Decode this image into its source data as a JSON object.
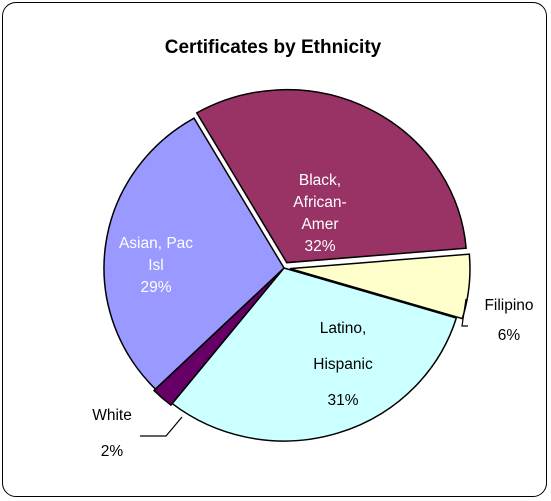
{
  "chart_data": {
    "type": "pie",
    "title": "Certificates by Ethnicity",
    "slices": [
      {
        "label": [
          "Black,",
          "African-",
          "Amer"
        ],
        "pct": "32%",
        "value": 32,
        "color": "#993366",
        "text_color": "#ffffff"
      },
      {
        "label": [
          "Filipino"
        ],
        "pct": "6%",
        "value": 6,
        "color": "#ffffcc",
        "text_color": "#000000"
      },
      {
        "label": [
          "Latino,",
          "Hispanic"
        ],
        "pct": "31%",
        "value": 31,
        "color": "#ccffff",
        "text_color": "#000000"
      },
      {
        "label": [
          "White"
        ],
        "pct": "2%",
        "value": 2,
        "color": "#660066",
        "text_color": "#000000"
      },
      {
        "label": [
          "Asian, Pac",
          "Isl"
        ],
        "pct": "29%",
        "value": 29,
        "color": "#9999ff",
        "text_color": "#ffffff"
      }
    ]
  }
}
